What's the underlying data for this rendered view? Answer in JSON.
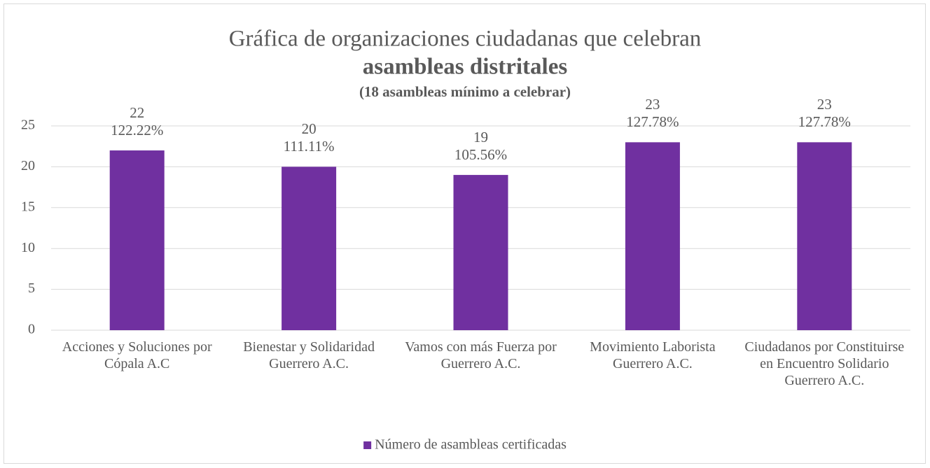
{
  "chart_data": {
    "type": "bar",
    "title": [
      "Gráfica de organizaciones ciudadanas que celebran",
      "asambleas distritales"
    ],
    "subtitle": "(18 asambleas mínimo a celebrar)",
    "categories": [
      "Acciones y Soluciones por Cópala A.C",
      "Bienestar y Solidaridad Guerrero A.C.",
      "Vamos con más Fuerza por Guerrero A.C.",
      "Movimiento Laborista Guerrero A.C.",
      "Ciudadanos por Constituirse en Encuentro Solidario Guerrero A.C."
    ],
    "series": [
      {
        "name": "Número de asambleas certificadas",
        "color": "#7030a0",
        "values": [
          22,
          20,
          19,
          23,
          23
        ],
        "percent_labels": [
          "122.22%",
          "111.11%",
          "105.56%",
          "127.78%",
          "127.78%"
        ]
      }
    ],
    "ylim": [
      0,
      25
    ],
    "yticks": [
      0,
      5,
      10,
      15,
      20,
      25
    ],
    "grid": true,
    "legend": "bottom"
  }
}
